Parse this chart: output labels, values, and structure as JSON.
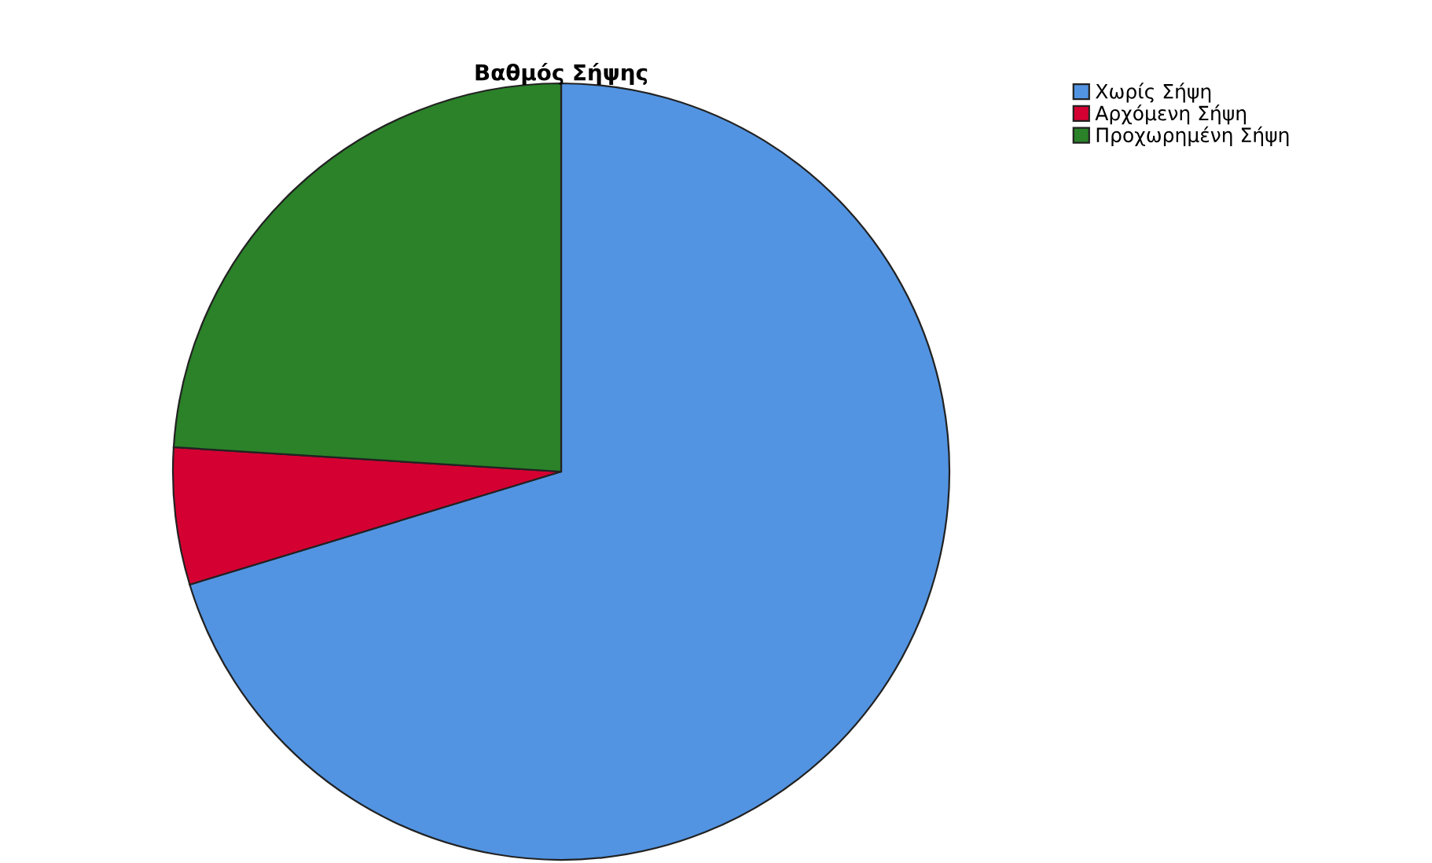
{
  "chart_data": {
    "type": "pie",
    "title": "Βαθμός Σήψης",
    "categories": [
      "Χωρίς Σήψη",
      "Αρχόμενη Σήψη",
      "Προχωρημένη Σήψη"
    ],
    "values": [
      70.3,
      5.7,
      24.0
    ],
    "colors": [
      "#5294e2",
      "#d50032",
      "#2b8229"
    ],
    "legend": "top right"
  }
}
